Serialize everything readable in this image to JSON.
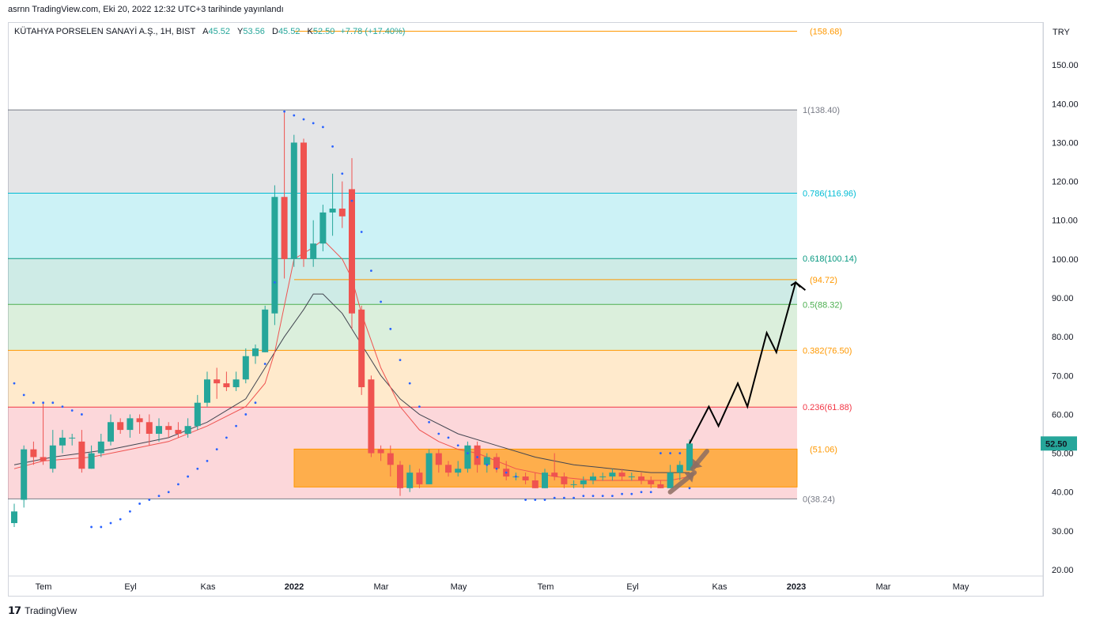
{
  "header": {
    "publisher": "asrnn TradingView.com, Eki 20, 2022 12:32 UTC+3 tarihinde yayınlandı"
  },
  "legend": {
    "symbol": "KÜTAHYA PORSELEN SANAYİ A.Ş., 1H, BIST",
    "open_label": "A",
    "open": "45.52",
    "high_label": "Y",
    "high": "53.56",
    "low_label": "D",
    "low": "45.52",
    "close_label": "K",
    "close": "52.50",
    "change": "+7.78 (+17.40%)"
  },
  "currency": "TRY",
  "last_price": "52.50",
  "footer": {
    "brand": "TradingView"
  },
  "colors": {
    "up": "#26a69a",
    "down": "#ef5350",
    "ema_fast": "#ef5350",
    "ema_slow": "#434651",
    "sar": "#2962ff",
    "box": "#ff9800",
    "target_line": "#ff9800"
  },
  "chart_data": {
    "type": "candlestick",
    "ylim": [
      20,
      160
    ],
    "y_ticks": [
      "150.00",
      "140.00",
      "130.00",
      "120.00",
      "110.00",
      "100.00",
      "90.00",
      "80.00",
      "70.00",
      "60.00",
      "50.00",
      "40.00",
      "30.00",
      "20.00"
    ],
    "x_ticks": [
      "Tem",
      "Eyl",
      "Kas",
      "2022",
      "Mar",
      "May",
      "Tem",
      "Eyl",
      "Kas",
      "2023",
      "Mar",
      "May"
    ],
    "fib_levels": [
      {
        "label": "1(138.40)",
        "value": 138.4,
        "color": "#787b86"
      },
      {
        "label": "0.786(116.96)",
        "value": 116.96,
        "color": "#00bcd4"
      },
      {
        "label": "0.618(100.14)",
        "value": 100.14,
        "color": "#089981"
      },
      {
        "label": "0.5(88.32)",
        "value": 88.32,
        "color": "#4caf50"
      },
      {
        "label": "0.382(76.50)",
        "value": 76.5,
        "color": "#ff9800"
      },
      {
        "label": "0.236(61.88)",
        "value": 61.88,
        "color": "#f23645"
      },
      {
        "label": "0(38.24)",
        "value": 38.24,
        "color": "#787b86"
      }
    ],
    "price_labels": [
      {
        "label": "(158.68)",
        "value": 158.68
      },
      {
        "label": "(94.72)",
        "value": 94.72
      },
      {
        "label": "(51.06)",
        "value": 51.06
      }
    ],
    "box": {
      "top": 51.06,
      "bottom": 41.3
    },
    "candles": [
      [
        32,
        35,
        31,
        37
      ],
      [
        38,
        51,
        36,
        52
      ],
      [
        51,
        49,
        47,
        53
      ],
      [
        49,
        48,
        47,
        63
      ],
      [
        46,
        52,
        45,
        56
      ],
      [
        52,
        54,
        50,
        56
      ],
      [
        54,
        54,
        52,
        55
      ],
      [
        53,
        46,
        45,
        56
      ],
      [
        46,
        50,
        46,
        52
      ],
      [
        50,
        53,
        49,
        55
      ],
      [
        53,
        58,
        52,
        60
      ],
      [
        58,
        56,
        55,
        59
      ],
      [
        56,
        59,
        54,
        60
      ],
      [
        59,
        58,
        55,
        60
      ],
      [
        58,
        55,
        52,
        60
      ],
      [
        55,
        57,
        53,
        59
      ],
      [
        57,
        56,
        54,
        58
      ],
      [
        56,
        55,
        54,
        58
      ],
      [
        55,
        57,
        54,
        59
      ],
      [
        57,
        63,
        56,
        65
      ],
      [
        63,
        69,
        62,
        71
      ],
      [
        69,
        68,
        64,
        72
      ],
      [
        68,
        67,
        66,
        71
      ],
      [
        67,
        69,
        66,
        71
      ],
      [
        69,
        75,
        68,
        77
      ],
      [
        75,
        77,
        73,
        78
      ],
      [
        76,
        87,
        76,
        88
      ],
      [
        86,
        116,
        83,
        119
      ],
      [
        116,
        100,
        95,
        138
      ],
      [
        100,
        130,
        98,
        132
      ],
      [
        130,
        100,
        98,
        131
      ],
      [
        100,
        104,
        98,
        110
      ],
      [
        104,
        112,
        102,
        114
      ],
      [
        112,
        113,
        106,
        122
      ],
      [
        113,
        111,
        108,
        120
      ],
      [
        118,
        86,
        82,
        126
      ],
      [
        87,
        67,
        65,
        88
      ],
      [
        69,
        50,
        49,
        70
      ],
      [
        51,
        50,
        48,
        52
      ],
      [
        50,
        47,
        44,
        52
      ],
      [
        47,
        41,
        39,
        48
      ],
      [
        41,
        45,
        40,
        47
      ],
      [
        45,
        42,
        41,
        46
      ],
      [
        42,
        50,
        42,
        51
      ],
      [
        50,
        47,
        45,
        51
      ],
      [
        47,
        45,
        44,
        48
      ],
      [
        45,
        46,
        44,
        48
      ],
      [
        46,
        52,
        45,
        53
      ],
      [
        52,
        47,
        45,
        53
      ],
      [
        47,
        49,
        45,
        50
      ],
      [
        49,
        46,
        45,
        50
      ],
      [
        46,
        44,
        43,
        48
      ],
      [
        44,
        44,
        43,
        45
      ],
      [
        44,
        43,
        42,
        45
      ],
      [
        43,
        41,
        41,
        45
      ],
      [
        41,
        45,
        41,
        46
      ],
      [
        45,
        44,
        43,
        50
      ],
      [
        44,
        42,
        41,
        45
      ],
      [
        42,
        42,
        41,
        43
      ],
      [
        42,
        43,
        41,
        44
      ],
      [
        43,
        44,
        42,
        45
      ],
      [
        44,
        44,
        43,
        45
      ],
      [
        44,
        45,
        43,
        46
      ],
      [
        45,
        44,
        43,
        46
      ],
      [
        44,
        44,
        43,
        45
      ],
      [
        44,
        43,
        42,
        45
      ],
      [
        43,
        42,
        41,
        44
      ],
      [
        42,
        41,
        41,
        43
      ],
      [
        41,
        45,
        41,
        47
      ],
      [
        45,
        47,
        43,
        48
      ],
      [
        45.52,
        52.5,
        45.52,
        53.56
      ]
    ],
    "ema_fast": [
      [
        0,
        46
      ],
      [
        3,
        48
      ],
      [
        8,
        49
      ],
      [
        12,
        51
      ],
      [
        16,
        53
      ],
      [
        20,
        57
      ],
      [
        24,
        62
      ],
      [
        26,
        68
      ],
      [
        27,
        76
      ],
      [
        28,
        88
      ],
      [
        29,
        100
      ],
      [
        31,
        103
      ],
      [
        32,
        105
      ],
      [
        34,
        100
      ],
      [
        35,
        95
      ],
      [
        36,
        86
      ],
      [
        38,
        72
      ],
      [
        40,
        62
      ],
      [
        42,
        56
      ],
      [
        44,
        53
      ],
      [
        46,
        51
      ],
      [
        48,
        50
      ],
      [
        50,
        48
      ],
      [
        52,
        46
      ],
      [
        56,
        44
      ],
      [
        60,
        43
      ],
      [
        64,
        43
      ],
      [
        68,
        43
      ],
      [
        70,
        44
      ]
    ],
    "ema_slow": [
      [
        0,
        47
      ],
      [
        4,
        49
      ],
      [
        10,
        51
      ],
      [
        16,
        54
      ],
      [
        20,
        58
      ],
      [
        24,
        64
      ],
      [
        26,
        72
      ],
      [
        28,
        80
      ],
      [
        30,
        87
      ],
      [
        31,
        91
      ],
      [
        32,
        91
      ],
      [
        34,
        86
      ],
      [
        36,
        78
      ],
      [
        38,
        70
      ],
      [
        40,
        64
      ],
      [
        42,
        60
      ],
      [
        46,
        55
      ],
      [
        50,
        52
      ],
      [
        54,
        49
      ],
      [
        58,
        47
      ],
      [
        62,
        46
      ],
      [
        66,
        45
      ],
      [
        70,
        45
      ]
    ],
    "sar": [
      [
        0,
        68
      ],
      [
        1,
        65
      ],
      [
        2,
        63
      ],
      [
        3,
        63
      ],
      [
        4,
        63
      ],
      [
        5,
        62
      ],
      [
        6,
        61
      ],
      [
        7,
        60
      ],
      [
        8,
        31
      ],
      [
        9,
        31
      ],
      [
        10,
        32
      ],
      [
        11,
        33
      ],
      [
        12,
        35
      ],
      [
        13,
        37
      ],
      [
        14,
        38
      ],
      [
        15,
        39
      ],
      [
        16,
        40
      ],
      [
        17,
        42
      ],
      [
        18,
        44
      ],
      [
        19,
        46
      ],
      [
        20,
        48
      ],
      [
        21,
        51
      ],
      [
        22,
        54
      ],
      [
        23,
        57
      ],
      [
        24,
        60
      ],
      [
        25,
        63
      ],
      [
        26,
        73
      ],
      [
        27,
        94
      ],
      [
        28,
        138
      ],
      [
        29,
        137
      ],
      [
        30,
        136
      ],
      [
        31,
        135
      ],
      [
        32,
        134
      ],
      [
        33,
        129
      ],
      [
        34,
        122
      ],
      [
        35,
        115
      ],
      [
        36,
        107
      ],
      [
        37,
        97
      ],
      [
        38,
        89
      ],
      [
        39,
        82
      ],
      [
        40,
        74
      ],
      [
        41,
        68
      ],
      [
        42,
        62
      ],
      [
        43,
        58
      ],
      [
        44,
        55
      ],
      [
        45,
        54
      ],
      [
        46,
        52
      ],
      [
        47,
        50
      ],
      [
        48,
        49
      ],
      [
        49,
        47
      ],
      [
        50,
        46
      ],
      [
        51,
        45
      ],
      [
        52,
        44
      ],
      [
        53,
        38
      ],
      [
        54,
        38
      ],
      [
        55,
        38
      ],
      [
        56,
        38.5
      ],
      [
        57,
        38.5
      ],
      [
        58,
        38.5
      ],
      [
        59,
        39
      ],
      [
        60,
        39
      ],
      [
        61,
        39
      ],
      [
        62,
        39
      ],
      [
        63,
        39.5
      ],
      [
        64,
        39.5
      ],
      [
        65,
        40
      ],
      [
        66,
        40
      ],
      [
        67,
        50
      ],
      [
        68,
        50
      ],
      [
        69,
        50
      ],
      [
        70,
        41
      ]
    ],
    "projection": [
      [
        70,
        52.5
      ],
      [
        72,
        62
      ],
      [
        73,
        57
      ],
      [
        75,
        68
      ],
      [
        76,
        62
      ],
      [
        78,
        81
      ],
      [
        79,
        76
      ],
      [
        81,
        94
      ],
      [
        82,
        92
      ]
    ],
    "arrows": [
      {
        "from": [
          68,
          40
        ],
        "to": [
          70.5,
          45
        ]
      },
      {
        "from": [
          71.8,
          50.5
        ],
        "to": [
          70.3,
          46
        ]
      }
    ]
  }
}
